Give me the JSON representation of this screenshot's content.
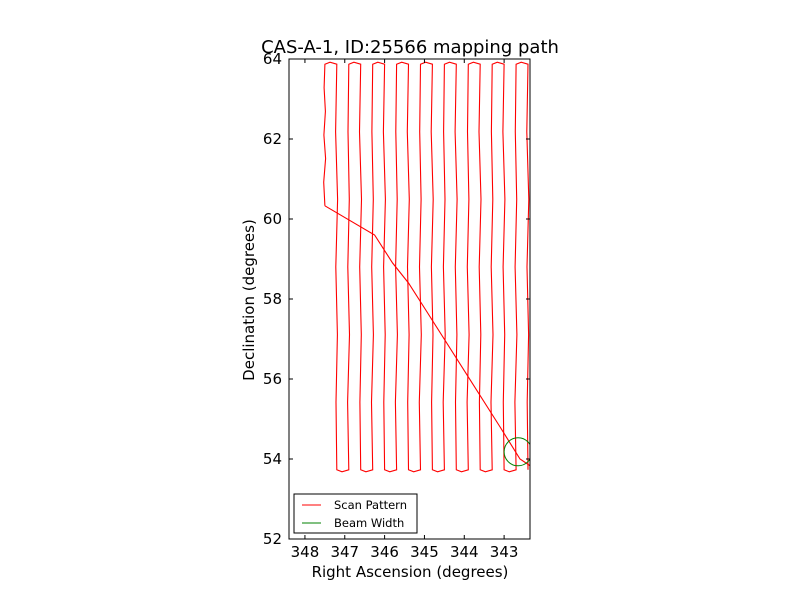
{
  "chart_data": {
    "type": "line",
    "title": "CAS-A-1, ID:25566 mapping path",
    "xlabel": "Right Ascension (degrees)",
    "ylabel": "Declination (degrees)",
    "xlim": [
      348.4,
      342.35
    ],
    "ylim": [
      52,
      64
    ],
    "xticks": [
      348,
      347,
      346,
      345,
      344,
      343
    ],
    "yticks": [
      52,
      54,
      56,
      58,
      60,
      62,
      64
    ],
    "grid": false,
    "legend_position": "lower-left",
    "colors": {
      "scan": "#ff0000",
      "beam": "#008000"
    },
    "scan": {
      "dec_start": 60.33,
      "dec_low": 53.73,
      "dec_high": 63.87,
      "leg_ra": [
        347.5,
        347.2,
        346.9,
        346.6,
        346.3,
        346.0,
        345.7,
        345.4,
        345.1,
        344.8,
        344.5,
        344.2,
        343.9,
        343.6,
        343.3,
        343.0,
        342.7,
        342.4
      ],
      "return_path": [
        [
          347.5,
          60.33
        ],
        [
          346.25,
          59.6
        ],
        [
          345.8,
          58.9
        ],
        [
          345.4,
          58.4
        ],
        [
          344.95,
          57.7
        ],
        [
          343.1,
          54.8
        ],
        [
          342.6,
          54.0
        ],
        [
          342.3,
          53.8
        ]
      ]
    },
    "beam": {
      "ra": 342.65,
      "dec": 54.18,
      "radius_deg": 0.35
    },
    "series": [
      {
        "name": "Scan Pattern",
        "color": "#ff0000"
      },
      {
        "name": "Beam Width",
        "color": "#008000"
      }
    ]
  }
}
